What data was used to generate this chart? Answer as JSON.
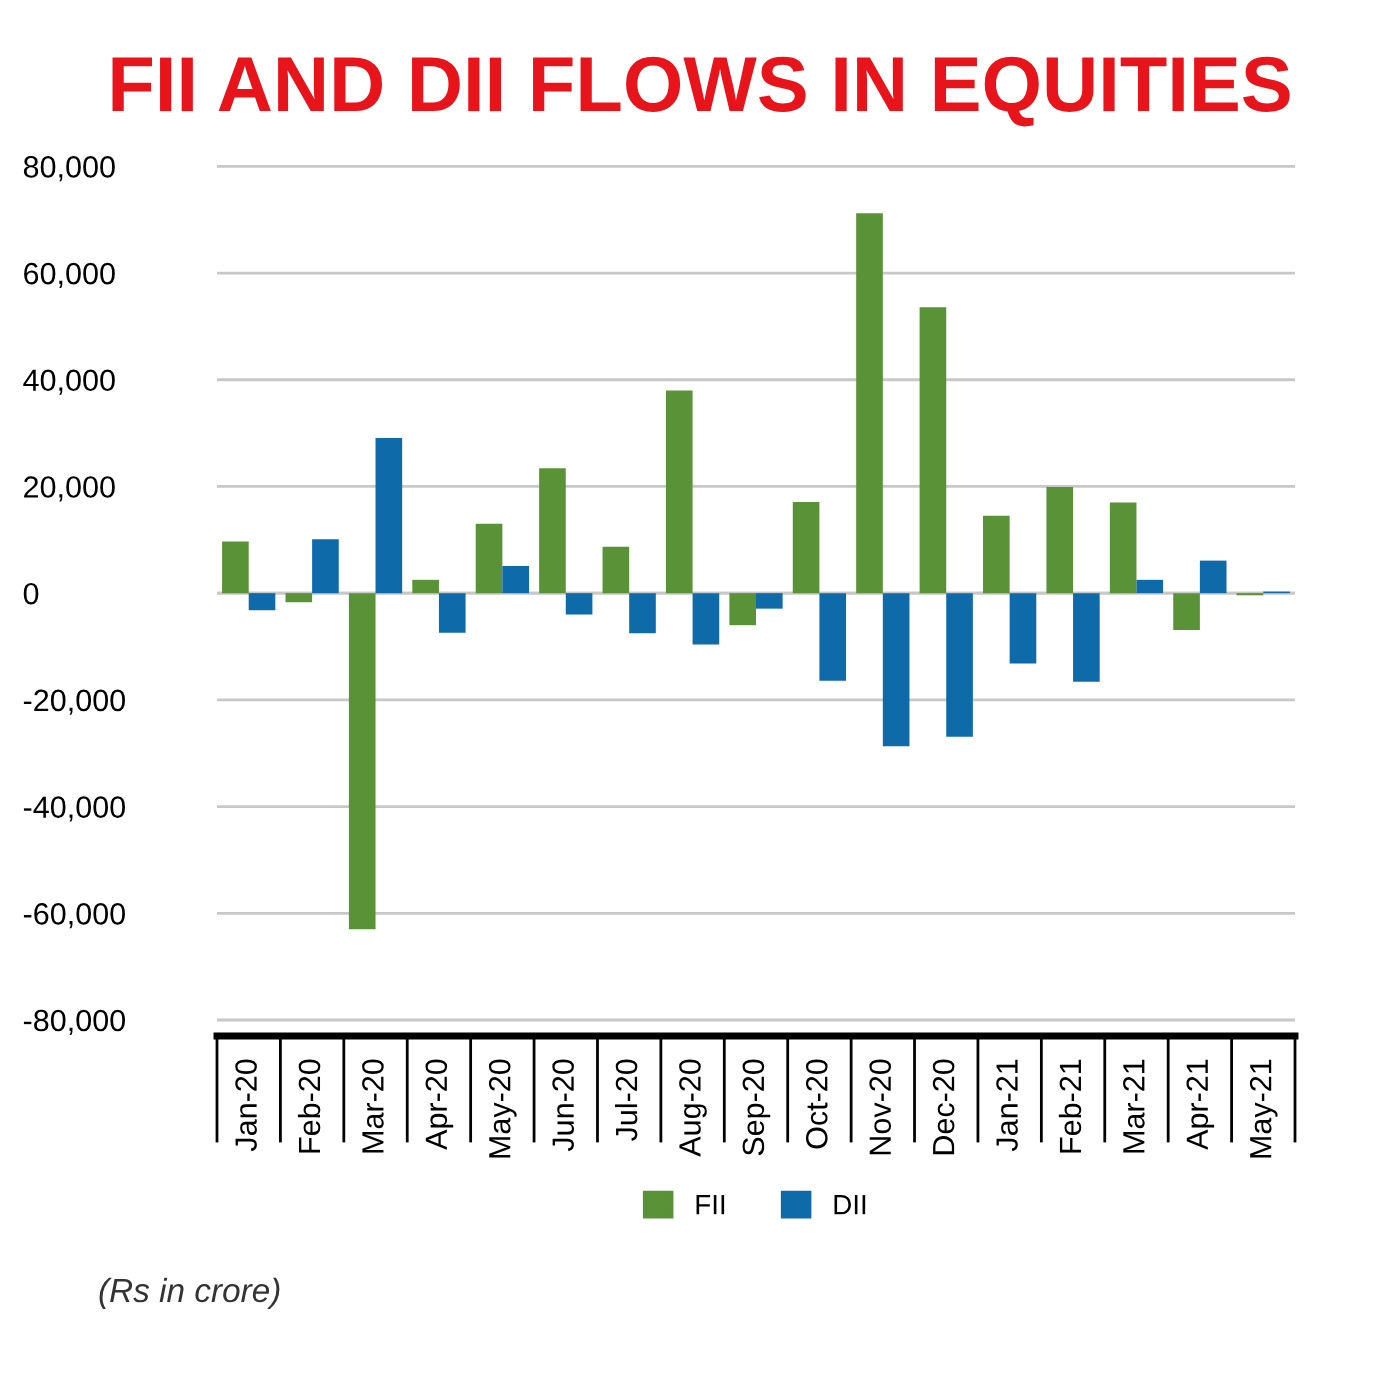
{
  "chart_data": {
    "type": "bar",
    "title": "FII AND DII FLOWS IN EQUITIES",
    "categories": [
      "Jan-20",
      "Feb-20",
      "Mar-20",
      "Apr-20",
      "May-20",
      "Jun-20",
      "Jul-20",
      "Aug-20",
      "Sep-20",
      "Oct-20",
      "Nov-20",
      "Dec-20",
      "Jan-21",
      "Feb-21",
      "Mar-21",
      "Apr-21",
      "May-21"
    ],
    "series": [
      {
        "name": "FII",
        "color": "#5a9237",
        "values": [
          9700,
          -1700,
          -63000,
          2500,
          13000,
          23400,
          8700,
          38000,
          -6000,
          17100,
          71200,
          53600,
          14500,
          19900,
          17000,
          -6900,
          -400
        ]
      },
      {
        "name": "DII",
        "color": "#0e6aa8",
        "values": [
          -3200,
          10100,
          29100,
          -7400,
          5100,
          -4000,
          -7500,
          -9600,
          -2900,
          -16400,
          -28700,
          -26900,
          -13200,
          -16600,
          2500,
          6100,
          300
        ]
      }
    ],
    "ylim": [
      -83000,
      81000
    ],
    "yticks": [
      {
        "value": -80000,
        "label": "-80,000"
      },
      {
        "value": -60000,
        "label": "-60,000"
      },
      {
        "value": -40000,
        "label": "-40,000"
      },
      {
        "value": -20000,
        "label": "-20,000"
      },
      0,
      {
        "value": 20000,
        "label": "20,000"
      },
      {
        "value": 40000,
        "label": "40,000"
      },
      {
        "value": 60000,
        "label": "60,000"
      },
      {
        "value": 80000,
        "label": "80,000"
      }
    ],
    "grid": "y",
    "legend": "bottom",
    "annotations": [
      "(Rs in crore)"
    ]
  }
}
